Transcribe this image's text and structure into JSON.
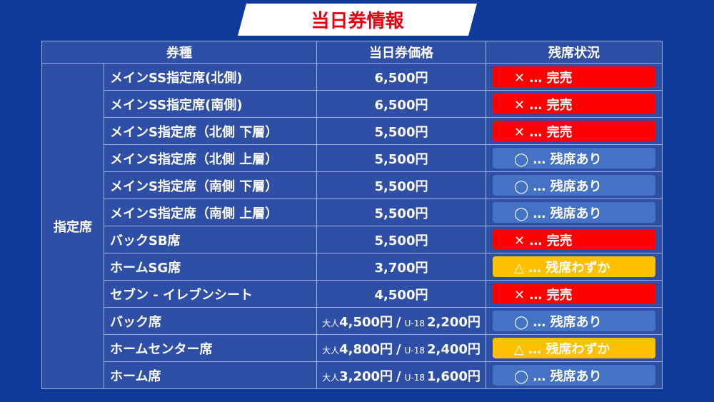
{
  "title": "当日券情報",
  "table": {
    "headers": [
      "券種",
      "当日券価格",
      "残席状況"
    ],
    "group": "指定席",
    "rows": [
      {
        "name": "メインSS指定席(北側)",
        "price": "6,500円",
        "status": "✕ … 完売",
        "color": "#ff0000"
      },
      {
        "name": "メインSS指定席(南側)",
        "price": "6,500円",
        "status": "✕ … 完売",
        "color": "#ff0000"
      },
      {
        "name": "メインS指定席（北側 下層）",
        "price": "5,500円",
        "status": "✕ … 完売",
        "color": "#ff0000"
      },
      {
        "name": "メインS指定席（北側 上層）",
        "price": "5,500円",
        "status": "◯ … 残席あり",
        "color": "#4472c4"
      },
      {
        "name": "メインS指定席（南側 下層）",
        "price": "5,500円",
        "status": "◯ … 残席あり",
        "color": "#4472c4"
      },
      {
        "name": "メインS指定席（南側 上層）",
        "price": "5,500円",
        "status": "◯ … 残席あり",
        "color": "#4472c4"
      },
      {
        "name": "バックSB席",
        "price": "5,500円",
        "status": "✕ … 完売",
        "color": "#ff0000"
      },
      {
        "name": "ホームSG席",
        "price": "3,700円",
        "status": "△ … 残席わずか",
        "color": "#ffc000"
      },
      {
        "name": "セブン - イレブンシート",
        "price": "4,500円",
        "status": "✕ … 完売",
        "color": "#ff0000"
      },
      {
        "name": "バック席",
        "price": {
          "adult_label": "大人",
          "adult": "4,500円",
          "separator": "/",
          "u18_label": "U-18",
          "u18": "2,200円"
        },
        "status": "◯ … 残席あり",
        "color": "#4472c4"
      },
      {
        "name": "ホームセンター席",
        "price": {
          "adult_label": "大人",
          "adult": "4,800円",
          "separator": "/",
          "u18_label": "U-18",
          "u18": "2,400円"
        },
        "status": "△ … 残席わずか",
        "color": "#ffc000"
      },
      {
        "name": "ホーム席",
        "price": {
          "adult_label": "大人",
          "adult": "3,200円",
          "separator": "/",
          "u18_label": "U-18",
          "u18": "1,600円"
        },
        "status": "◯ … 残席あり",
        "color": "#4472c4"
      }
    ]
  }
}
